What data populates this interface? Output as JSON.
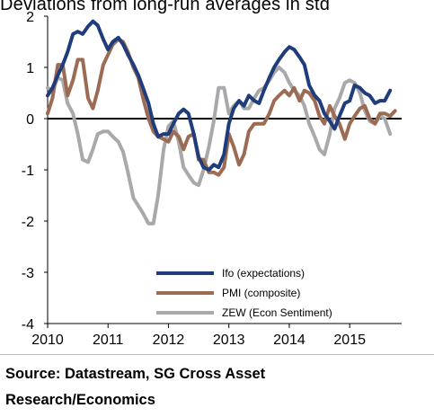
{
  "chart_data": {
    "type": "line",
    "title": "Deviations from long-run averages in std",
    "xlabel": "",
    "ylabel": "",
    "xlim": [
      2010,
      2015.83
    ],
    "ylim": [
      -4,
      2
    ],
    "yticks": [
      "2",
      "1",
      "0",
      "-1",
      "-2",
      "-3",
      "-4"
    ],
    "xticks": [
      "2010",
      "2011",
      "2012",
      "2013",
      "2014",
      "2015"
    ],
    "grid": false,
    "legend_position": "bottom-right",
    "series": [
      {
        "name": "Ifo (expectations)",
        "color": "#1f3d7a",
        "points": [
          [
            2010.0,
            0.45
          ],
          [
            2010.08,
            0.6
          ],
          [
            2010.17,
            0.85
          ],
          [
            2010.25,
            1.05
          ],
          [
            2010.33,
            1.3
          ],
          [
            2010.42,
            1.65
          ],
          [
            2010.5,
            1.7
          ],
          [
            2010.58,
            1.65
          ],
          [
            2010.67,
            1.8
          ],
          [
            2010.75,
            1.9
          ],
          [
            2010.83,
            1.82
          ],
          [
            2010.92,
            1.55
          ],
          [
            2011.0,
            1.35
          ],
          [
            2011.08,
            1.5
          ],
          [
            2011.17,
            1.58
          ],
          [
            2011.25,
            1.45
          ],
          [
            2011.33,
            1.25
          ],
          [
            2011.42,
            1.05
          ],
          [
            2011.5,
            0.85
          ],
          [
            2011.58,
            0.6
          ],
          [
            2011.67,
            0.3
          ],
          [
            2011.75,
            -0.1
          ],
          [
            2011.83,
            -0.35
          ],
          [
            2011.92,
            -0.3
          ],
          [
            2012.0,
            -0.3
          ],
          [
            2012.08,
            -0.1
          ],
          [
            2012.17,
            0.1
          ],
          [
            2012.25,
            0.18
          ],
          [
            2012.33,
            0.1
          ],
          [
            2012.42,
            -0.3
          ],
          [
            2012.5,
            -0.75
          ],
          [
            2012.58,
            -0.95
          ],
          [
            2012.67,
            -1.0
          ],
          [
            2012.75,
            -0.9
          ],
          [
            2012.83,
            -0.95
          ],
          [
            2012.92,
            -0.7
          ],
          [
            2013.0,
            -0.1
          ],
          [
            2013.08,
            0.2
          ],
          [
            2013.17,
            0.35
          ],
          [
            2013.25,
            0.25
          ],
          [
            2013.33,
            0.45
          ],
          [
            2013.42,
            0.35
          ],
          [
            2013.5,
            0.3
          ],
          [
            2013.58,
            0.55
          ],
          [
            2013.67,
            0.8
          ],
          [
            2013.75,
            1.0
          ],
          [
            2013.83,
            1.15
          ],
          [
            2013.92,
            1.3
          ],
          [
            2014.0,
            1.4
          ],
          [
            2014.08,
            1.35
          ],
          [
            2014.17,
            1.2
          ],
          [
            2014.25,
            1.05
          ],
          [
            2014.33,
            0.65
          ],
          [
            2014.42,
            0.45
          ],
          [
            2014.5,
            0.35
          ],
          [
            2014.58,
            0.1
          ],
          [
            2014.67,
            -0.05
          ],
          [
            2014.75,
            -0.2
          ],
          [
            2014.83,
            0.05
          ],
          [
            2014.92,
            0.3
          ],
          [
            2015.0,
            0.35
          ],
          [
            2015.08,
            0.65
          ],
          [
            2015.17,
            0.6
          ],
          [
            2015.25,
            0.5
          ],
          [
            2015.33,
            0.45
          ],
          [
            2015.42,
            0.3
          ],
          [
            2015.5,
            0.35
          ],
          [
            2015.58,
            0.35
          ],
          [
            2015.67,
            0.55
          ]
        ]
      },
      {
        "name": "PMI (composite)",
        "color": "#9c6b54",
        "points": [
          [
            2010.0,
            0.1
          ],
          [
            2010.08,
            0.4
          ],
          [
            2010.17,
            1.05
          ],
          [
            2010.25,
            1.05
          ],
          [
            2010.33,
            0.45
          ],
          [
            2010.42,
            0.75
          ],
          [
            2010.5,
            1.15
          ],
          [
            2010.58,
            1.15
          ],
          [
            2010.67,
            0.4
          ],
          [
            2010.75,
            0.2
          ],
          [
            2010.83,
            0.55
          ],
          [
            2010.92,
            1.05
          ],
          [
            2011.0,
            1.25
          ],
          [
            2011.08,
            1.45
          ],
          [
            2011.17,
            1.55
          ],
          [
            2011.25,
            1.5
          ],
          [
            2011.33,
            1.3
          ],
          [
            2011.42,
            1.0
          ],
          [
            2011.5,
            0.8
          ],
          [
            2011.58,
            0.4
          ],
          [
            2011.67,
            0.0
          ],
          [
            2011.75,
            -0.25
          ],
          [
            2011.83,
            -0.35
          ],
          [
            2011.92,
            -0.4
          ],
          [
            2012.0,
            -0.45
          ],
          [
            2012.08,
            -0.25
          ],
          [
            2012.17,
            -0.35
          ],
          [
            2012.25,
            -0.6
          ],
          [
            2012.33,
            -0.35
          ],
          [
            2012.42,
            -0.3
          ],
          [
            2012.5,
            -0.8
          ],
          [
            2012.58,
            -0.8
          ],
          [
            2012.67,
            -1.05
          ],
          [
            2012.75,
            -1.05
          ],
          [
            2012.83,
            -1.1
          ],
          [
            2012.92,
            -0.95
          ],
          [
            2013.0,
            -0.3
          ],
          [
            2013.08,
            -0.55
          ],
          [
            2013.17,
            -0.9
          ],
          [
            2013.25,
            -0.7
          ],
          [
            2013.33,
            -0.25
          ],
          [
            2013.42,
            -0.1
          ],
          [
            2013.5,
            -0.1
          ],
          [
            2013.58,
            -0.1
          ],
          [
            2013.67,
            0.1
          ],
          [
            2013.75,
            0.35
          ],
          [
            2013.83,
            0.45
          ],
          [
            2013.92,
            0.55
          ],
          [
            2014.0,
            0.45
          ],
          [
            2014.08,
            0.6
          ],
          [
            2014.17,
            0.35
          ],
          [
            2014.25,
            0.55
          ],
          [
            2014.33,
            0.5
          ],
          [
            2014.42,
            0.35
          ],
          [
            2014.5,
            0.05
          ],
          [
            2014.58,
            -0.1
          ],
          [
            2014.67,
            0.25
          ],
          [
            2014.75,
            0.05
          ],
          [
            2014.83,
            -0.1
          ],
          [
            2014.92,
            -0.4
          ],
          [
            2015.0,
            -0.1
          ],
          [
            2015.08,
            0.05
          ],
          [
            2015.17,
            0.2
          ],
          [
            2015.25,
            0.25
          ],
          [
            2015.33,
            0.0
          ],
          [
            2015.42,
            -0.1
          ],
          [
            2015.5,
            0.1
          ],
          [
            2015.58,
            0.1
          ],
          [
            2015.67,
            0.05
          ],
          [
            2015.75,
            0.15
          ]
        ]
      },
      {
        "name": "ZEW (Econ Sentiment)",
        "color": "#a9a9ac",
        "points": [
          [
            2010.0,
            0.6
          ],
          [
            2010.08,
            0.55
          ],
          [
            2010.17,
            0.8
          ],
          [
            2010.25,
            0.75
          ],
          [
            2010.33,
            0.3
          ],
          [
            2010.42,
            0.1
          ],
          [
            2010.5,
            -0.3
          ],
          [
            2010.58,
            -0.8
          ],
          [
            2010.67,
            -0.85
          ],
          [
            2010.75,
            -0.6
          ],
          [
            2010.83,
            -0.3
          ],
          [
            2010.92,
            -0.25
          ],
          [
            2011.0,
            -0.25
          ],
          [
            2011.08,
            -0.35
          ],
          [
            2011.17,
            -0.45
          ],
          [
            2011.25,
            -0.65
          ],
          [
            2011.33,
            -1.05
          ],
          [
            2011.42,
            -1.55
          ],
          [
            2011.5,
            -1.7
          ],
          [
            2011.58,
            -1.85
          ],
          [
            2011.67,
            -2.05
          ],
          [
            2011.75,
            -2.05
          ],
          [
            2011.83,
            -1.5
          ],
          [
            2011.92,
            -0.6
          ],
          [
            2012.0,
            -0.15
          ],
          [
            2012.08,
            -0.05
          ],
          [
            2012.17,
            -0.45
          ],
          [
            2012.25,
            -0.95
          ],
          [
            2012.33,
            -1.1
          ],
          [
            2012.42,
            -1.25
          ],
          [
            2012.5,
            -1.3
          ],
          [
            2012.58,
            -1.0
          ],
          [
            2012.67,
            -0.55
          ],
          [
            2012.75,
            -0.05
          ],
          [
            2012.83,
            0.6
          ],
          [
            2012.92,
            0.6
          ],
          [
            2013.0,
            0.1
          ],
          [
            2013.08,
            0.25
          ],
          [
            2013.17,
            0.35
          ],
          [
            2013.25,
            0.2
          ],
          [
            2013.33,
            0.2
          ],
          [
            2013.42,
            0.4
          ],
          [
            2013.5,
            0.55
          ],
          [
            2013.58,
            0.6
          ],
          [
            2013.67,
            0.75
          ],
          [
            2013.75,
            0.9
          ],
          [
            2013.83,
            1.0
          ],
          [
            2013.92,
            0.9
          ],
          [
            2014.0,
            0.7
          ],
          [
            2014.08,
            0.55
          ],
          [
            2014.17,
            0.45
          ],
          [
            2014.25,
            0.25
          ],
          [
            2014.33,
            -0.1
          ],
          [
            2014.42,
            -0.35
          ],
          [
            2014.5,
            -0.6
          ],
          [
            2014.58,
            -0.7
          ],
          [
            2014.67,
            -0.3
          ],
          [
            2014.75,
            0.2
          ],
          [
            2014.83,
            0.4
          ],
          [
            2014.92,
            0.7
          ],
          [
            2015.0,
            0.75
          ],
          [
            2015.08,
            0.7
          ],
          [
            2015.17,
            0.5
          ],
          [
            2015.25,
            0.15
          ],
          [
            2015.33,
            -0.05
          ],
          [
            2015.42,
            -0.1
          ],
          [
            2015.5,
            0.05
          ],
          [
            2015.58,
            0.0
          ],
          [
            2015.67,
            -0.3
          ]
        ]
      }
    ]
  },
  "source": {
    "line1": "Source: Datastream, SG Cross Asset",
    "line2": "Research/Economics"
  }
}
